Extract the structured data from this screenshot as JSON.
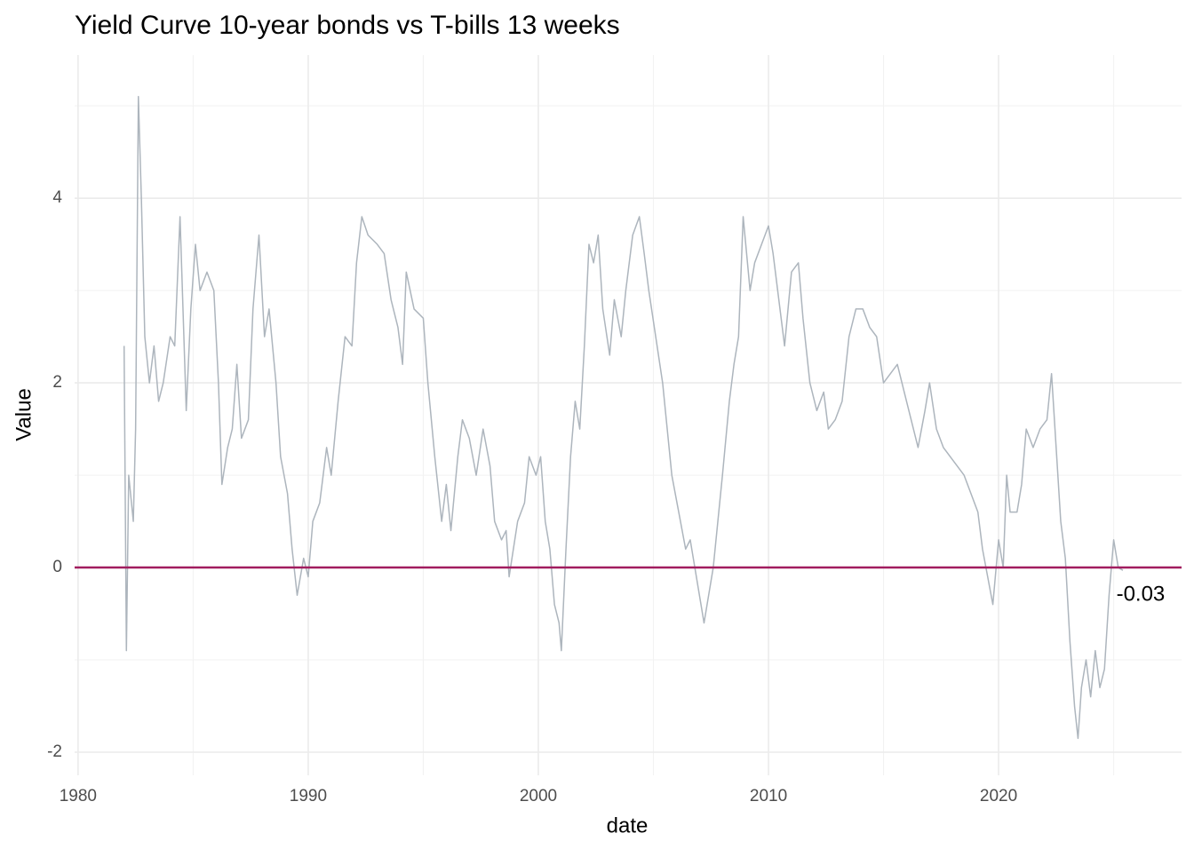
{
  "chart_data": {
    "type": "line",
    "title": "Yield Curve 10-year bonds vs T-bills 13 weeks",
    "xlabel": "date",
    "ylabel": "Value",
    "x": [
      1982.0,
      1982.1,
      1982.2,
      1982.4,
      1982.5,
      1982.62,
      1982.75,
      1982.9,
      1983.1,
      1983.3,
      1983.5,
      1983.7,
      1984.0,
      1984.2,
      1984.43,
      1984.7,
      1984.9,
      1985.1,
      1985.3,
      1985.6,
      1985.9,
      1986.1,
      1986.25,
      1986.5,
      1986.7,
      1986.9,
      1987.1,
      1987.4,
      1987.6,
      1987.86,
      1988.1,
      1988.3,
      1988.6,
      1988.8,
      1989.1,
      1989.3,
      1989.52,
      1989.8,
      1990.0,
      1990.2,
      1990.5,
      1990.8,
      1991.0,
      1991.3,
      1991.6,
      1991.9,
      1992.1,
      1992.33,
      1992.6,
      1993.0,
      1993.3,
      1993.6,
      1993.9,
      1994.1,
      1994.26,
      1994.6,
      1995.0,
      1995.2,
      1995.5,
      1995.8,
      1996.0,
      1996.2,
      1996.5,
      1996.7,
      1997.0,
      1997.3,
      1997.6,
      1997.9,
      1998.1,
      1998.4,
      1998.6,
      1998.73,
      1999.1,
      1999.4,
      1999.6,
      1999.9,
      2000.1,
      2000.3,
      2000.5,
      2000.7,
      2000.9,
      2001.0,
      2001.2,
      2001.4,
      2001.6,
      2001.8,
      2002.0,
      2002.2,
      2002.4,
      2002.6,
      2002.8,
      2003.1,
      2003.3,
      2003.6,
      2003.8,
      2004.1,
      2004.39,
      2004.6,
      2004.8,
      2005.1,
      2005.4,
      2005.6,
      2005.8,
      2006.1,
      2006.4,
      2006.6,
      2006.8,
      2007.0,
      2007.2,
      2007.4,
      2007.6,
      2007.8,
      2008.0,
      2008.3,
      2008.5,
      2008.7,
      2008.9,
      2009.2,
      2009.4,
      2009.7,
      2010.0,
      2010.2,
      2010.4,
      2010.7,
      2011.0,
      2011.3,
      2011.5,
      2011.8,
      2012.1,
      2012.4,
      2012.6,
      2012.9,
      2013.2,
      2013.5,
      2013.8,
      2014.1,
      2014.4,
      2014.7,
      2015.0,
      2015.3,
      2015.6,
      2015.9,
      2016.2,
      2016.5,
      2016.8,
      2017.0,
      2017.3,
      2017.6,
      2017.9,
      2018.2,
      2018.5,
      2018.8,
      2019.1,
      2019.3,
      2019.6,
      2019.75,
      2020.0,
      2020.2,
      2020.35,
      2020.5,
      2020.8,
      2021.0,
      2021.2,
      2021.5,
      2021.8,
      2022.1,
      2022.3,
      2022.5,
      2022.7,
      2022.9,
      2023.1,
      2023.3,
      2023.45,
      2023.6,
      2023.8,
      2024.0,
      2024.2,
      2024.4,
      2024.6,
      2024.8,
      2025.0,
      2025.2,
      2025.4
    ],
    "series": [
      {
        "name": "Value",
        "color": "#adb5bd",
        "values": [
          2.4,
          -0.9,
          1.0,
          0.5,
          1.5,
          5.1,
          4.0,
          2.5,
          2.0,
          2.4,
          1.8,
          2.0,
          2.5,
          2.4,
          3.8,
          1.7,
          2.8,
          3.5,
          3.0,
          3.2,
          3.0,
          2.0,
          0.9,
          1.3,
          1.5,
          2.2,
          1.4,
          1.6,
          2.8,
          3.6,
          2.5,
          2.8,
          2.0,
          1.2,
          0.8,
          0.2,
          -0.3,
          0.1,
          -0.1,
          0.5,
          0.7,
          1.3,
          1.0,
          1.8,
          2.5,
          2.4,
          3.3,
          3.8,
          3.6,
          3.5,
          3.4,
          2.9,
          2.6,
          2.2,
          3.2,
          2.8,
          2.7,
          2.0,
          1.2,
          0.5,
          0.9,
          0.4,
          1.2,
          1.6,
          1.4,
          1.0,
          1.5,
          1.1,
          0.5,
          0.3,
          0.4,
          -0.1,
          0.5,
          0.7,
          1.2,
          1.0,
          1.2,
          0.5,
          0.2,
          -0.4,
          -0.6,
          -0.9,
          0.2,
          1.2,
          1.8,
          1.5,
          2.4,
          3.5,
          3.3,
          3.6,
          2.8,
          2.3,
          2.9,
          2.5,
          3.0,
          3.6,
          3.8,
          3.4,
          3.0,
          2.5,
          2.0,
          1.5,
          1.0,
          0.6,
          0.2,
          0.3,
          0.0,
          -0.3,
          -0.6,
          -0.3,
          0.0,
          0.5,
          1.0,
          1.8,
          2.2,
          2.5,
          3.8,
          3.0,
          3.3,
          3.5,
          3.7,
          3.4,
          3.0,
          2.4,
          3.2,
          3.3,
          2.7,
          2.0,
          1.7,
          1.9,
          1.5,
          1.6,
          1.8,
          2.5,
          2.8,
          2.8,
          2.6,
          2.5,
          2.0,
          2.1,
          2.2,
          1.9,
          1.6,
          1.3,
          1.7,
          2.0,
          1.5,
          1.3,
          1.2,
          1.1,
          1.0,
          0.8,
          0.6,
          0.2,
          -0.2,
          -0.4,
          0.3,
          0.0,
          1.0,
          0.6,
          0.6,
          0.9,
          1.5,
          1.3,
          1.5,
          1.6,
          2.1,
          1.3,
          0.5,
          0.1,
          -0.8,
          -1.5,
          -1.85,
          -1.3,
          -1.0,
          -1.4,
          -0.9,
          -1.3,
          -1.1,
          -0.3,
          0.3,
          0.0,
          -0.03
        ]
      }
    ],
    "xlim": [
      1979.85,
      2027.95
    ],
    "ylim": [
      -2.25,
      5.55
    ],
    "xticks": [
      1980,
      1990,
      2000,
      2010,
      2020
    ],
    "yticks": [
      -2,
      0,
      2,
      4
    ],
    "xticks_minor": [
      1985,
      1995,
      2005,
      2015,
      2025
    ],
    "yticks_minor": [
      -1,
      1,
      3,
      5
    ],
    "grid": true,
    "hline": {
      "y": 0,
      "color": "#a11d5f"
    },
    "annotations": [
      {
        "label": "-0.03",
        "x": 2025.4,
        "y": -0.03
      }
    ]
  }
}
